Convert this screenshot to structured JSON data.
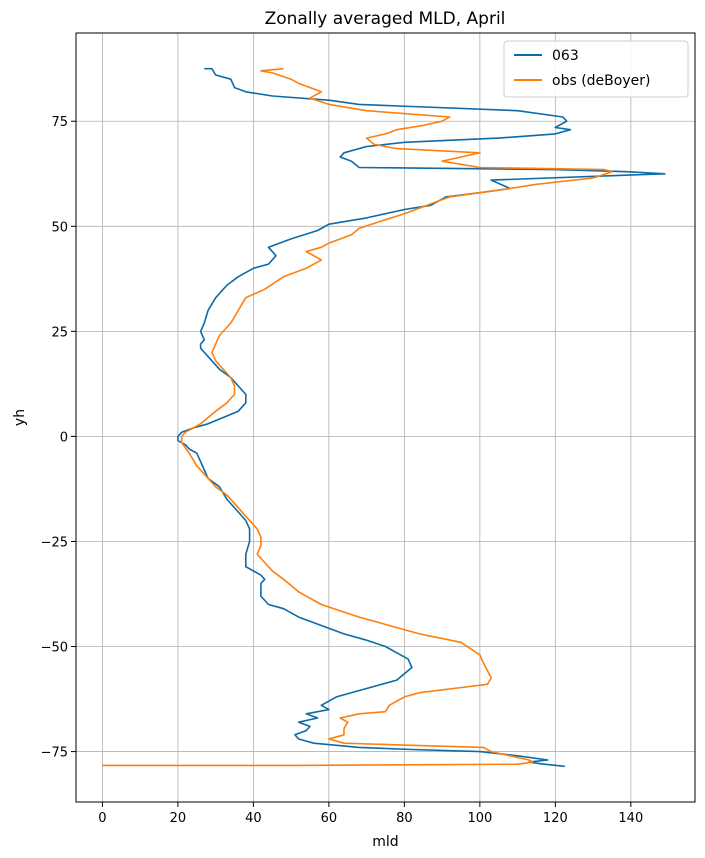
{
  "chart_data": {
    "type": "line",
    "title": "Zonally averaged MLD, April",
    "xlabel": "mld",
    "ylabel": "yh",
    "xlim": [
      -7,
      157
    ],
    "ylim": [
      -87,
      96
    ],
    "xticks": [
      0,
      20,
      40,
      60,
      80,
      100,
      120,
      140
    ],
    "yticks": [
      -75,
      -50,
      -25,
      0,
      25,
      50,
      75
    ],
    "xtick_labels": [
      "0",
      "20",
      "40",
      "60",
      "80",
      "100",
      "120",
      "140"
    ],
    "ytick_labels": [
      "−75",
      "−50",
      "−25",
      "0",
      "25",
      "50",
      "75"
    ],
    "grid": true,
    "legend_position": "top-right",
    "series": [
      {
        "name": "063",
        "color": "#0C6BA8",
        "points": [
          [
            122.5,
            -78.5
          ],
          [
            117,
            -78
          ],
          [
            113,
            -77.5
          ],
          [
            118,
            -77
          ],
          [
            110,
            -76
          ],
          [
            100,
            -75
          ],
          [
            82,
            -74.5
          ],
          [
            68,
            -74
          ],
          [
            56,
            -73
          ],
          [
            52,
            -72
          ],
          [
            51,
            -71
          ],
          [
            54,
            -70
          ],
          [
            55,
            -69
          ],
          [
            52,
            -68
          ],
          [
            57,
            -67
          ],
          [
            54,
            -66
          ],
          [
            60,
            -65
          ],
          [
            58,
            -64
          ],
          [
            62,
            -62
          ],
          [
            70,
            -60
          ],
          [
            78,
            -58
          ],
          [
            80,
            -56.5
          ],
          [
            82,
            -55
          ],
          [
            81,
            -53
          ],
          [
            79,
            -52
          ],
          [
            75,
            -50
          ],
          [
            70,
            -48.5
          ],
          [
            64,
            -47
          ],
          [
            58,
            -45
          ],
          [
            52,
            -43
          ],
          [
            48,
            -41
          ],
          [
            44,
            -40
          ],
          [
            42,
            -38
          ],
          [
            42,
            -35
          ],
          [
            43,
            -34
          ],
          [
            42,
            -33
          ],
          [
            40,
            -32
          ],
          [
            38,
            -31
          ],
          [
            38,
            -28
          ],
          [
            39,
            -25
          ],
          [
            39,
            -22
          ],
          [
            38,
            -20
          ],
          [
            36,
            -18
          ],
          [
            33,
            -15
          ],
          [
            31,
            -12
          ],
          [
            28,
            -10
          ],
          [
            27,
            -8
          ],
          [
            26,
            -6
          ],
          [
            25,
            -4
          ],
          [
            23,
            -3
          ],
          [
            22,
            -2
          ],
          [
            20,
            -1
          ],
          [
            20,
            0
          ],
          [
            21,
            1
          ],
          [
            24,
            2
          ],
          [
            28,
            3
          ],
          [
            32,
            4.5
          ],
          [
            36,
            6
          ],
          [
            38,
            8
          ],
          [
            38,
            10
          ],
          [
            36,
            12
          ],
          [
            34,
            14
          ],
          [
            31,
            16
          ],
          [
            29,
            18
          ],
          [
            27,
            20
          ],
          [
            26,
            21
          ],
          [
            26,
            22
          ],
          [
            27,
            23
          ],
          [
            26,
            25
          ],
          [
            27,
            27
          ],
          [
            28,
            30
          ],
          [
            30,
            33
          ],
          [
            33,
            36
          ],
          [
            36,
            38
          ],
          [
            40,
            40
          ],
          [
            44,
            41
          ],
          [
            46,
            43
          ],
          [
            44,
            45
          ],
          [
            50,
            47
          ],
          [
            57,
            49
          ],
          [
            60,
            50.5
          ],
          [
            70,
            52
          ],
          [
            80,
            54
          ],
          [
            87,
            55
          ],
          [
            91,
            57
          ],
          [
            100,
            58
          ],
          [
            108,
            59
          ],
          [
            103,
            61
          ],
          [
            149,
            62.5
          ],
          [
            139,
            63
          ],
          [
            120,
            63.5
          ],
          [
            68,
            64
          ],
          [
            66,
            65.5
          ],
          [
            63,
            66.5
          ],
          [
            64,
            67.5
          ],
          [
            70,
            69
          ],
          [
            80,
            70
          ],
          [
            105,
            71
          ],
          [
            120,
            72
          ],
          [
            124,
            73
          ],
          [
            120,
            73.5
          ],
          [
            123,
            75
          ],
          [
            122,
            76
          ],
          [
            110,
            77.5
          ],
          [
            82,
            78.5
          ],
          [
            68,
            79
          ],
          [
            60,
            80
          ],
          [
            45,
            81
          ],
          [
            38,
            82
          ],
          [
            35,
            83
          ],
          [
            34,
            85
          ],
          [
            30,
            86
          ],
          [
            29,
            87.5
          ],
          [
            27,
            87.5
          ]
        ]
      },
      {
        "name": "obs (deBoyer)",
        "color": "#FF7F0E",
        "points": [
          [
            0,
            -78.3
          ],
          [
            50,
            -78.3
          ],
          [
            110,
            -78
          ],
          [
            114,
            -77.5
          ],
          [
            113,
            -77
          ],
          [
            103,
            -75
          ],
          [
            101,
            -74
          ],
          [
            82,
            -73.5
          ],
          [
            64,
            -73
          ],
          [
            60,
            -72
          ],
          [
            64,
            -71
          ],
          [
            64,
            -69.5
          ],
          [
            65,
            -68
          ],
          [
            63,
            -67
          ],
          [
            68,
            -66
          ],
          [
            75,
            -65.5
          ],
          [
            76,
            -64
          ],
          [
            80,
            -62
          ],
          [
            84,
            -61
          ],
          [
            93,
            -60
          ],
          [
            102,
            -59
          ],
          [
            103,
            -57.5
          ],
          [
            101,
            -54
          ],
          [
            100,
            -52
          ],
          [
            95,
            -49
          ],
          [
            84,
            -47
          ],
          [
            76,
            -45
          ],
          [
            68,
            -43
          ],
          [
            58,
            -40
          ],
          [
            52,
            -37
          ],
          [
            48,
            -34
          ],
          [
            45,
            -32
          ],
          [
            43,
            -30
          ],
          [
            41,
            -28
          ],
          [
            42,
            -26
          ],
          [
            42,
            -24
          ],
          [
            41,
            -22
          ],
          [
            40,
            -21
          ],
          [
            38,
            -19
          ],
          [
            36,
            -17
          ],
          [
            33,
            -14
          ],
          [
            30,
            -12
          ],
          [
            27,
            -9
          ],
          [
            25,
            -7
          ],
          [
            23,
            -4
          ],
          [
            21,
            -1.5
          ],
          [
            21,
            0
          ],
          [
            22,
            1
          ],
          [
            26,
            3
          ],
          [
            30,
            6
          ],
          [
            33,
            8
          ],
          [
            35,
            10
          ],
          [
            35,
            12
          ],
          [
            34,
            14
          ],
          [
            32,
            16
          ],
          [
            30,
            18
          ],
          [
            29,
            20
          ],
          [
            30,
            22
          ],
          [
            31,
            24
          ],
          [
            34,
            27
          ],
          [
            36,
            30
          ],
          [
            38,
            33
          ],
          [
            43,
            35
          ],
          [
            48,
            38
          ],
          [
            54,
            40
          ],
          [
            58,
            42
          ],
          [
            54,
            44
          ],
          [
            58,
            45
          ],
          [
            60,
            46
          ],
          [
            66,
            48
          ],
          [
            68,
            49.5
          ],
          [
            73,
            51
          ],
          [
            80,
            53
          ],
          [
            86,
            55
          ],
          [
            92,
            57
          ],
          [
            100,
            58
          ],
          [
            108,
            59
          ],
          [
            115,
            60
          ],
          [
            130,
            61.5
          ],
          [
            135,
            63
          ],
          [
            133,
            63.5
          ],
          [
            100,
            64
          ],
          [
            90,
            65.5
          ],
          [
            95,
            66.5
          ],
          [
            100,
            67.5
          ],
          [
            78,
            68.5
          ],
          [
            72,
            69.5
          ],
          [
            70,
            71
          ],
          [
            75,
            72
          ],
          [
            78,
            73
          ],
          [
            85,
            74
          ],
          [
            90,
            75
          ],
          [
            92,
            76
          ],
          [
            70,
            77.5
          ],
          [
            60,
            79
          ],
          [
            55,
            80.5
          ],
          [
            58,
            82
          ],
          [
            52,
            84
          ],
          [
            50,
            85
          ],
          [
            45,
            86.5
          ],
          [
            42,
            87
          ],
          [
            48,
            87.5
          ]
        ]
      }
    ]
  }
}
